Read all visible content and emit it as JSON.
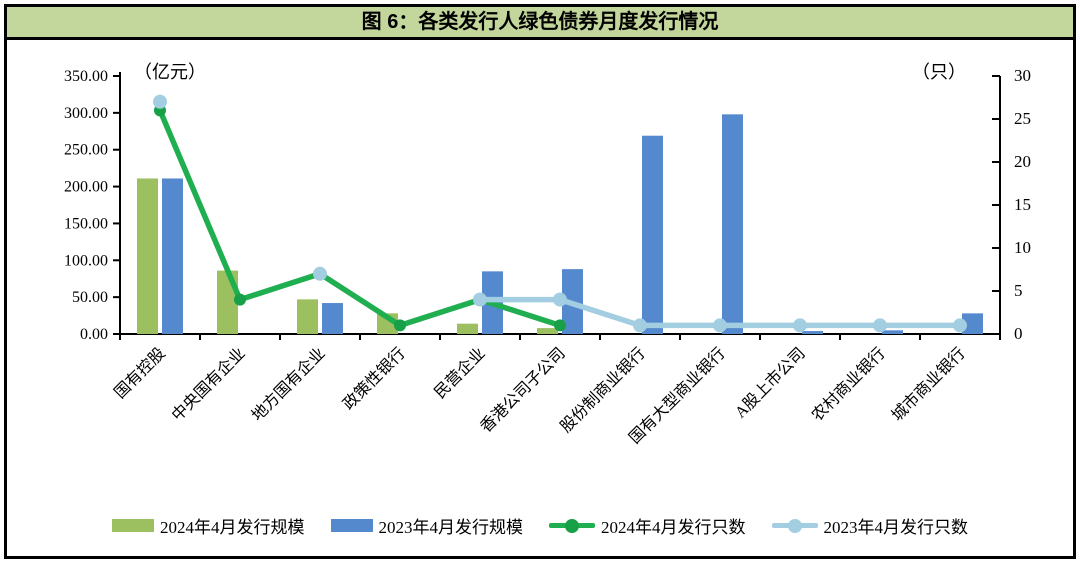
{
  "title": "图 6：各类发行人绿色债券月度发行情况",
  "left_ticks": [
    "350.00",
    "300.00",
    "250.00",
    "200.00",
    "150.00",
    "100.00",
    "50.00",
    "0.00"
  ],
  "right_ticks": [
    "30",
    "25",
    "20",
    "15",
    "10",
    "5",
    "0"
  ],
  "chart_data": {
    "type": "bar+line combo (dual axis)",
    "categories": [
      "国有控股",
      "中央国有企业",
      "地方国有企业",
      "政策性银行",
      "民营企业",
      "香港公司子公司",
      "股份制商业银行",
      "国有大型商业银行",
      "A股上市公司",
      "农村商业银行",
      "城市商业银行"
    ],
    "left_axis": {
      "label": "（亿元）",
      "min": 0,
      "max": 350,
      "step": 50
    },
    "right_axis": {
      "label": "（只）",
      "min": 0,
      "max": 30,
      "step": 5
    },
    "grid": false,
    "legend_position": "bottom",
    "series": [
      {
        "name": "2024年4月发行规模",
        "type": "bar",
        "axis": "left",
        "color": "#9CBF60",
        "values": [
          211,
          86,
          47,
          28,
          14,
          8,
          null,
          null,
          null,
          null,
          null
        ]
      },
      {
        "name": "2023年4月发行规模",
        "type": "bar",
        "axis": "left",
        "color": "#5589CE",
        "values": [
          211,
          null,
          42,
          null,
          85,
          88,
          269,
          298,
          4,
          5,
          28
        ]
      },
      {
        "name": "2024年4月发行只数",
        "type": "line",
        "axis": "right",
        "color": "#1FAE50",
        "marker_color": "#17A048",
        "values": [
          26,
          4,
          7,
          1,
          4,
          1,
          null,
          null,
          null,
          null,
          null
        ]
      },
      {
        "name": "2023年4月发行只数",
        "type": "line",
        "axis": "right",
        "color": "#A3CDE0",
        "marker_color": "#A3CDE0",
        "values": [
          27,
          null,
          7,
          null,
          4,
          4,
          1,
          1,
          1,
          1,
          1
        ]
      }
    ]
  },
  "colors": {
    "title_bg": "#C3D69B",
    "frame_border": "#000000",
    "axis": "#000000",
    "background": "#FFFFFF"
  }
}
